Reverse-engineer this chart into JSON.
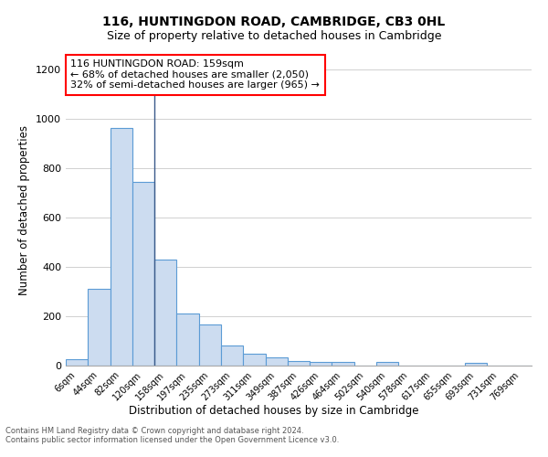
{
  "title1": "116, HUNTINGDON ROAD, CAMBRIDGE, CB3 0HL",
  "title2": "Size of property relative to detached houses in Cambridge",
  "xlabel": "Distribution of detached houses by size in Cambridge",
  "ylabel": "Number of detached properties",
  "bin_labels": [
    "6sqm",
    "44sqm",
    "82sqm",
    "120sqm",
    "158sqm",
    "197sqm",
    "235sqm",
    "273sqm",
    "311sqm",
    "349sqm",
    "387sqm",
    "426sqm",
    "464sqm",
    "502sqm",
    "540sqm",
    "578sqm",
    "617sqm",
    "655sqm",
    "693sqm",
    "731sqm",
    "769sqm"
  ],
  "bar_heights": [
    25,
    310,
    965,
    745,
    430,
    210,
    165,
    80,
    50,
    32,
    18,
    14,
    13,
    0,
    13,
    0,
    0,
    0,
    12,
    0,
    0
  ],
  "bar_color": "#ccdcf0",
  "bar_edge_color": "#5b9bd5",
  "grid_color": "#d0d0d0",
  "annotation_text": "116 HUNTINGDON ROAD: 159sqm\n← 68% of detached houses are smaller (2,050)\n32% of semi-detached houses are larger (965) →",
  "footnote1": "Contains HM Land Registry data © Crown copyright and database right 2024.",
  "footnote2": "Contains public sector information licensed under the Open Government Licence v3.0.",
  "ylim": [
    0,
    1260
  ],
  "yticks": [
    0,
    200,
    400,
    600,
    800,
    1000,
    1200
  ],
  "bg_color": "#ffffff",
  "prop_line_bin_idx": 4,
  "title1_fontsize": 10,
  "title2_fontsize": 9,
  "xlabel_fontsize": 8.5,
  "ylabel_fontsize": 8.5,
  "annotation_fontsize": 8,
  "footnote_fontsize": 6,
  "ytick_fontsize": 8,
  "xtick_fontsize": 7
}
